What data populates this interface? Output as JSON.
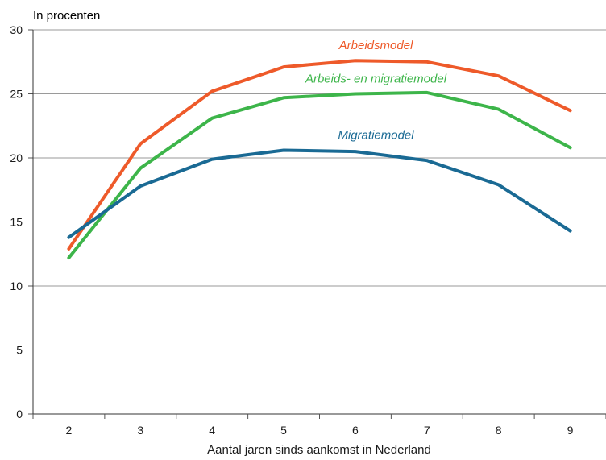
{
  "chart_data": {
    "type": "line",
    "ylabel": "In procenten",
    "xlabel": "Aantal jaren sinds aankomst in Nederland",
    "x": [
      2,
      3,
      4,
      5,
      6,
      7,
      8,
      9
    ],
    "ylim": [
      0,
      30
    ],
    "yticks": [
      0,
      5,
      10,
      15,
      20,
      25,
      30
    ],
    "grid": true,
    "series": [
      {
        "name": "Arbeidsmodel",
        "color": "#ee5a2a",
        "values": [
          12.9,
          21.1,
          25.2,
          27.1,
          27.6,
          27.5,
          26.4,
          23.7
        ]
      },
      {
        "name": "Arbeids- en migratiemodel",
        "color": "#3db54a",
        "values": [
          12.2,
          19.2,
          23.1,
          24.7,
          25.0,
          25.1,
          23.8,
          20.8
        ]
      },
      {
        "name": "Migratiemodel",
        "color": "#1a6a94",
        "values": [
          13.8,
          17.8,
          19.9,
          20.6,
          20.5,
          19.8,
          17.9,
          14.3
        ]
      }
    ]
  }
}
